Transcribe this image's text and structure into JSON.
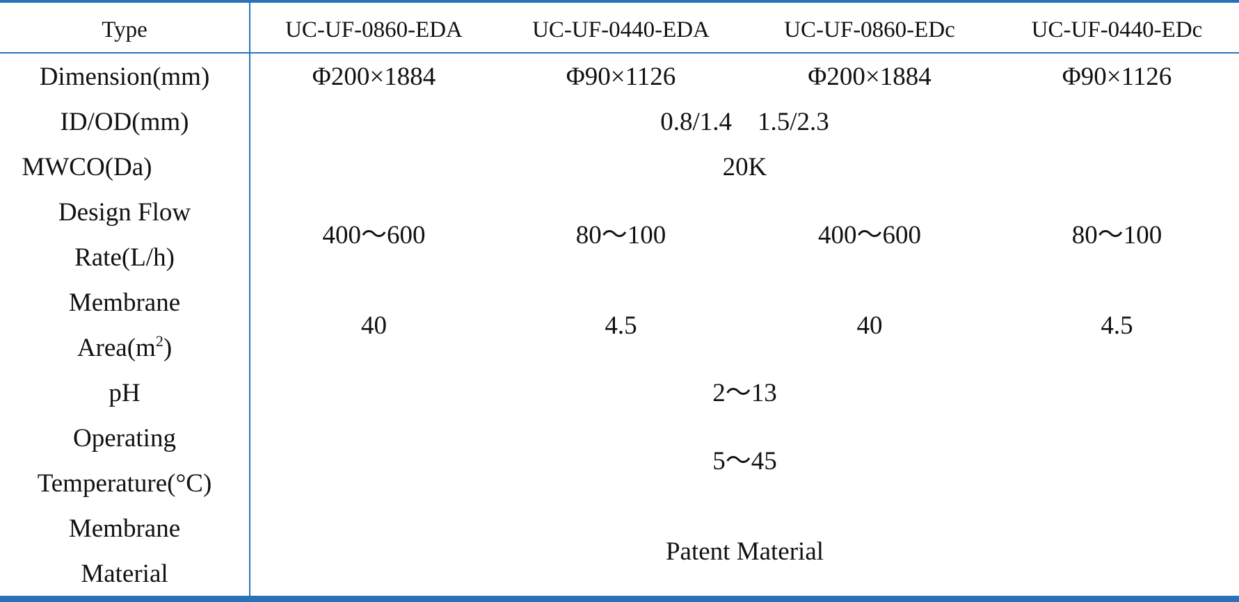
{
  "header": {
    "type_label": "Type",
    "models": [
      "UC-UF-0860-EDA",
      "UC-UF-0440-EDA",
      "UC-UF-0860-EDc",
      "UC-UF-0440-EDc"
    ]
  },
  "rows": {
    "dimension": {
      "label": "Dimension(mm)",
      "values": [
        "Φ200×1884",
        "Φ90×1126",
        "Φ200×1884",
        "Φ90×1126"
      ]
    },
    "id_od": {
      "label": "ID/OD(mm)",
      "value": "0.8/1.4    1.5/2.3"
    },
    "mwco": {
      "label": "MWCO(Da)",
      "value": "20K"
    },
    "flow": {
      "label_line1": "Design Flow",
      "label_line2": "Rate(L/h)",
      "values": [
        "400～600",
        "80～100",
        "400～600",
        "80～100"
      ]
    },
    "area": {
      "label_line1": "Membrane",
      "label_line2_base": "Area(m",
      "label_line2_sup": "2",
      "label_line2_end": ")",
      "values": [
        "40",
        "4.5",
        "40",
        "4.5"
      ]
    },
    "ph": {
      "label": "pH",
      "value": "2～13"
    },
    "temp": {
      "label_line1": "Operating",
      "label_line2": "Temperature(°C)",
      "value": "5～45"
    },
    "material": {
      "label_line1": "Membrane",
      "label_line2": "Material",
      "value": "Patent Material"
    }
  },
  "colors": {
    "rule": "#2a72b8",
    "text": "#111111",
    "background": "#ffffff"
  }
}
